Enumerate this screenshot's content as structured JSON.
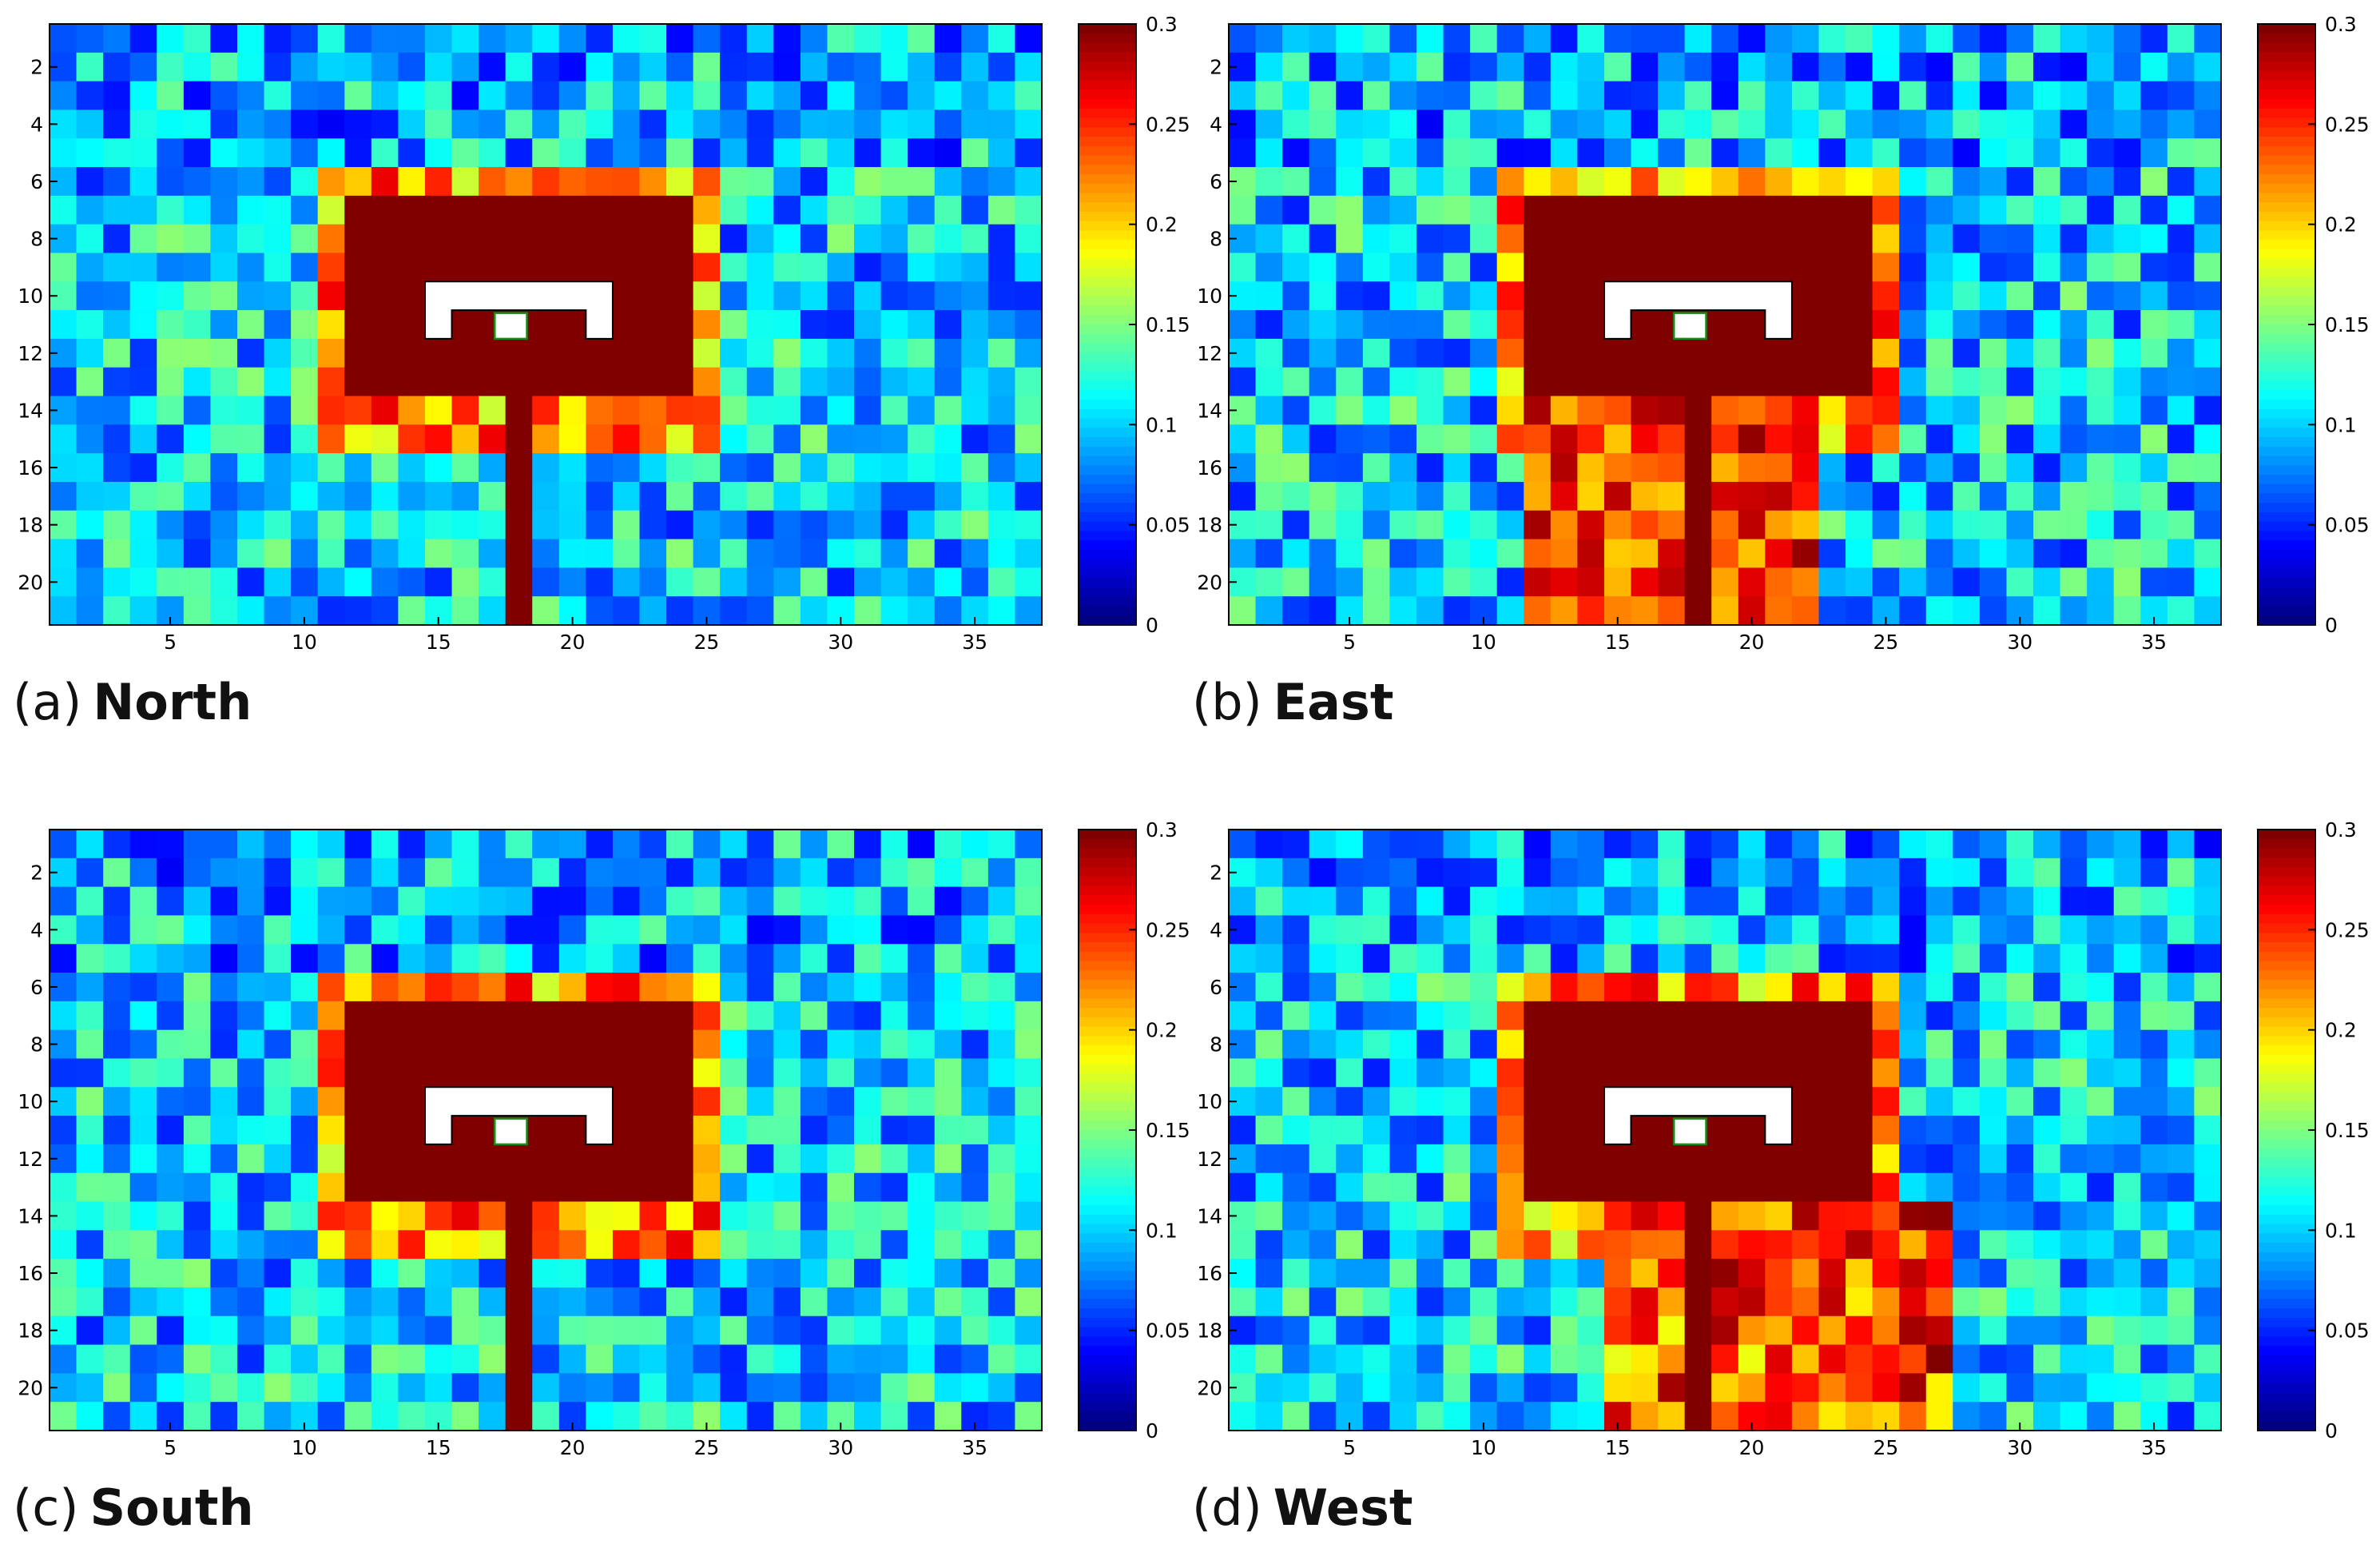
{
  "chart_data": [
    {
      "type": "heatmap",
      "label": "(a)",
      "title": "North",
      "grid_size": {
        "rows": 21,
        "cols": 37
      },
      "x_ticks": [
        5,
        10,
        15,
        20,
        25,
        30,
        35
      ],
      "y_ticks": [
        2,
        4,
        6,
        8,
        10,
        12,
        14,
        16,
        18,
        20
      ],
      "colorbar": {
        "min": 0,
        "max": 0.3,
        "ticks": [
          "0",
          "0.05",
          "0.1",
          "0.15",
          "0.2",
          "0.25",
          "0.3"
        ],
        "colormap": "jet"
      },
      "background_level": 0.1,
      "high_region_value": 0.3,
      "obstacle": {
        "color": "#ffffff",
        "outline": "#000000",
        "marker_outline": "#1a8a1a"
      },
      "seed": 11
    },
    {
      "type": "heatmap",
      "label": "(b)",
      "title": "East",
      "grid_size": {
        "rows": 21,
        "cols": 37
      },
      "x_ticks": [
        5,
        10,
        15,
        20,
        25,
        30,
        35
      ],
      "y_ticks": [
        2,
        4,
        6,
        8,
        10,
        12,
        14,
        16,
        18,
        20
      ],
      "colorbar": {
        "min": 0,
        "max": 0.3,
        "ticks": [
          "0",
          "0.05",
          "0.1",
          "0.15",
          "0.2",
          "0.25",
          "0.3"
        ],
        "colormap": "jet"
      },
      "background_level": 0.1,
      "high_region_value": 0.3,
      "obstacle": {
        "color": "#ffffff",
        "outline": "#000000",
        "marker_outline": "#1a8a1a"
      },
      "seed": 23
    },
    {
      "type": "heatmap",
      "label": "(c)",
      "title": "South",
      "grid_size": {
        "rows": 21,
        "cols": 37
      },
      "x_ticks": [
        5,
        10,
        15,
        20,
        25,
        30,
        35
      ],
      "y_ticks": [
        2,
        4,
        6,
        8,
        10,
        12,
        14,
        16,
        18,
        20
      ],
      "colorbar": {
        "min": 0,
        "max": 0.3,
        "ticks": [
          "0",
          "0.05",
          "0.1",
          "0.15",
          "0.2",
          "0.25",
          "0.3"
        ],
        "colormap": "jet"
      },
      "background_level": 0.1,
      "high_region_value": 0.3,
      "obstacle": {
        "color": "#ffffff",
        "outline": "#000000",
        "marker_outline": "#1a8a1a"
      },
      "seed": 37
    },
    {
      "type": "heatmap",
      "label": "(d)",
      "title": "West",
      "grid_size": {
        "rows": 21,
        "cols": 37
      },
      "x_ticks": [
        5,
        10,
        15,
        20,
        25,
        30,
        35
      ],
      "y_ticks": [
        2,
        4,
        6,
        8,
        10,
        12,
        14,
        16,
        18,
        20
      ],
      "colorbar": {
        "min": 0,
        "max": 0.3,
        "ticks": [
          "0",
          "0.05",
          "0.1",
          "0.15",
          "0.2",
          "0.25",
          "0.3"
        ],
        "colormap": "jet"
      },
      "background_level": 0.1,
      "high_region_value": 0.3,
      "obstacle": {
        "color": "#ffffff",
        "outline": "#000000",
        "marker_outline": "#1a8a1a"
      },
      "seed": 53
    }
  ]
}
